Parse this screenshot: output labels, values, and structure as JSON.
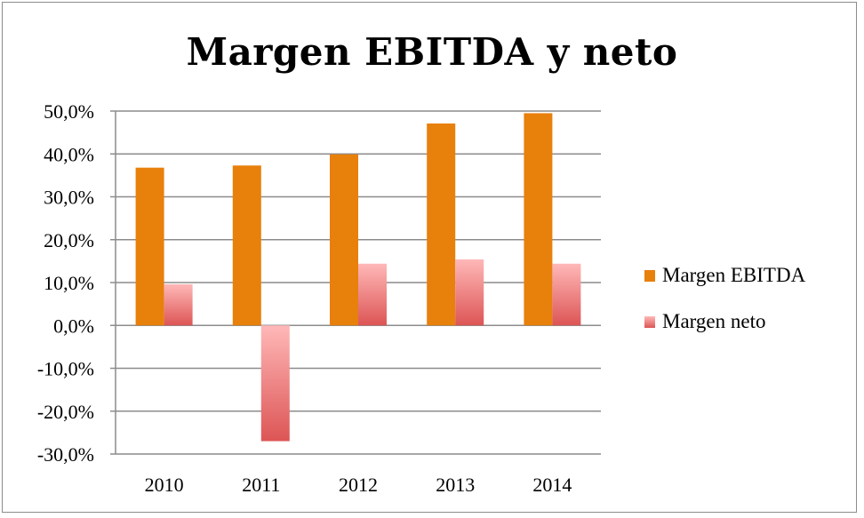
{
  "chart_data": {
    "type": "bar",
    "title": "Margen EBITDA y neto",
    "categories": [
      "2010",
      "2011",
      "2012",
      "2013",
      "2014"
    ],
    "series": [
      {
        "name": "Margen EBITDA",
        "values": [
          36.8,
          37.3,
          39.9,
          47.1,
          49.5
        ],
        "color": "#e8800c"
      },
      {
        "name": "Margen neto",
        "values": [
          9.6,
          -27.0,
          14.4,
          15.4,
          14.4
        ],
        "color_top": "#ffb8b8",
        "color_bottom": "#dd5555"
      }
    ],
    "ylim": [
      -30,
      50
    ],
    "yticks": [
      "50,0%",
      "40,0%",
      "30,0%",
      "20,0%",
      "10,0%",
      "0,0%",
      "-10,0%",
      "-20,0%",
      "-30,0%"
    ],
    "ytick_values": [
      50,
      40,
      30,
      20,
      10,
      0,
      -10,
      -20,
      -30
    ],
    "grid": true,
    "legend_position": "right"
  }
}
